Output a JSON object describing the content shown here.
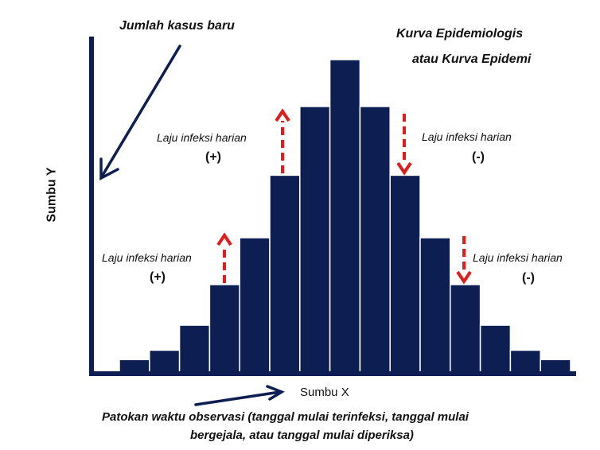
{
  "title": {
    "line1": "Kurva Epidemiologis",
    "line2": "atau Kurva Epidemi"
  },
  "y_axis_annotation": "Jumlah kasus baru",
  "y_axis_label": "Sumbu Y",
  "x_axis_label": "Sumbu X",
  "footer": {
    "line1": "Patokan waktu observasi (tanggal mulai terinfeksi, tanggal mulai",
    "line2": "bergejala, atau tanggal mulai diperiksa)"
  },
  "annotations": {
    "upper_left": {
      "text": "Laju infeksi harian",
      "sign": "(+)"
    },
    "upper_right": {
      "text": "Laju infeksi harian",
      "sign": "(-)"
    },
    "lower_left": {
      "text": "Laju infeksi harian",
      "sign": "(+)"
    },
    "lower_right": {
      "text": "Laju infeksi harian",
      "sign": "(-)"
    }
  },
  "chart_data": {
    "type": "bar",
    "description_values_relative": true,
    "values": [
      4,
      7,
      15,
      28,
      43,
      63,
      85,
      100,
      85,
      63,
      43,
      28,
      15,
      7,
      4
    ]
  },
  "colors": {
    "bar_fill": "#0d1f52",
    "bar_stroke": "#ffffff",
    "axis": "#0d1f52",
    "arrow_dark": "#0d1f52",
    "arrow_red": "#e01c1c"
  }
}
